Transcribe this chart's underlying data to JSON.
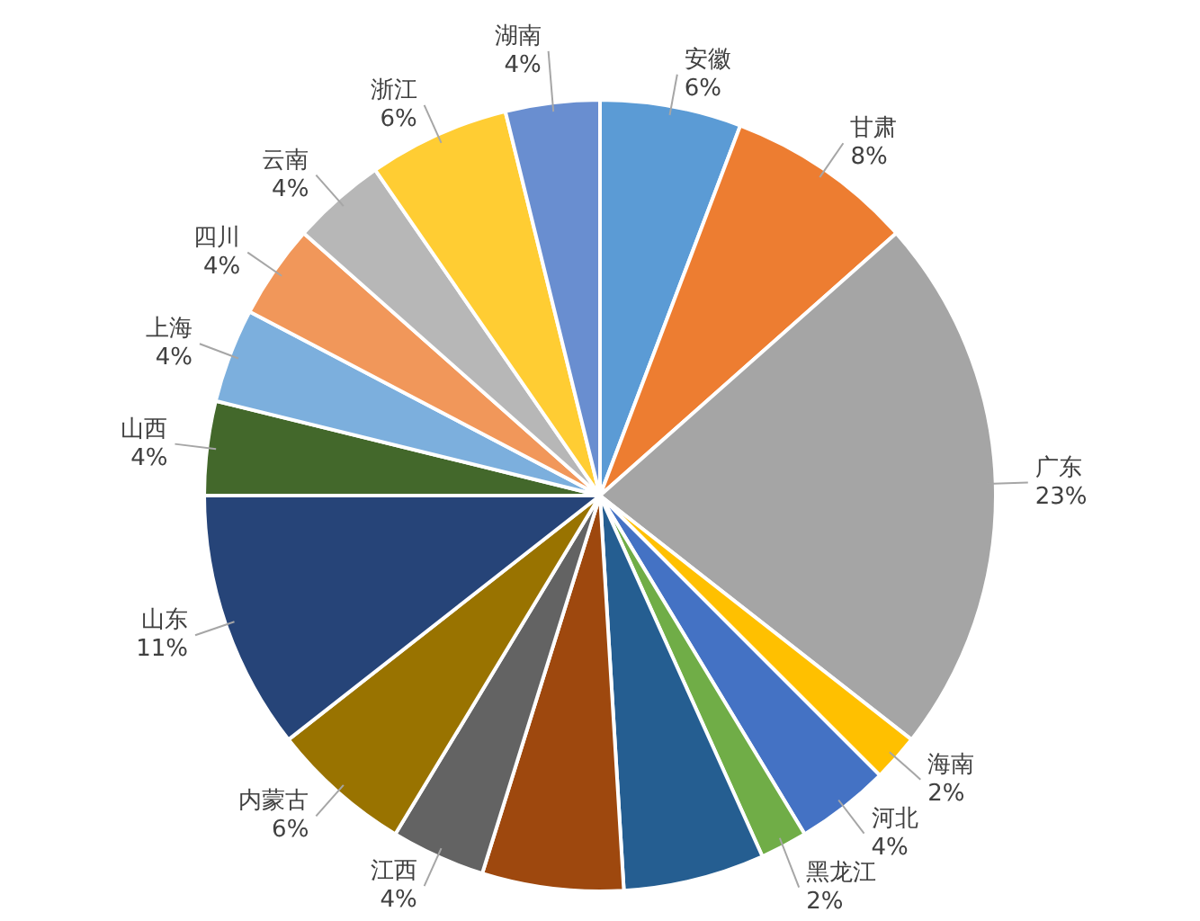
{
  "chart_data": {
    "type": "pie",
    "categories": [
      "安徽",
      "甘肃",
      "广东",
      "海南",
      "河北",
      "黑龙江",
      null,
      null,
      "江西",
      "内蒙古",
      "山东",
      "山西",
      "上海",
      "四川",
      "云南",
      "浙江",
      "湖南"
    ],
    "values": [
      6,
      8,
      23,
      2,
      4,
      2,
      6,
      6,
      4,
      6,
      11,
      4,
      4,
      4,
      4,
      6,
      4
    ],
    "colors": [
      "#5b9bd5",
      "#ed7d31",
      "#a5a5a5",
      "#ffc000",
      "#4472c4",
      "#70ad47",
      "#255e91",
      "#9e480e",
      "#636363",
      "#997300",
      "#264478",
      "#43682b",
      "#7cafdd",
      "#f1975a",
      "#b7b7b7",
      "#ffcd33",
      "#698ed0"
    ],
    "value_labels": [
      "6%",
      "8%",
      "23%",
      "2%",
      "4%",
      "2%",
      null,
      null,
      "4%",
      "6%",
      "11%",
      "4%",
      "4%",
      "4%",
      "4%",
      "6%",
      "4%"
    ]
  }
}
